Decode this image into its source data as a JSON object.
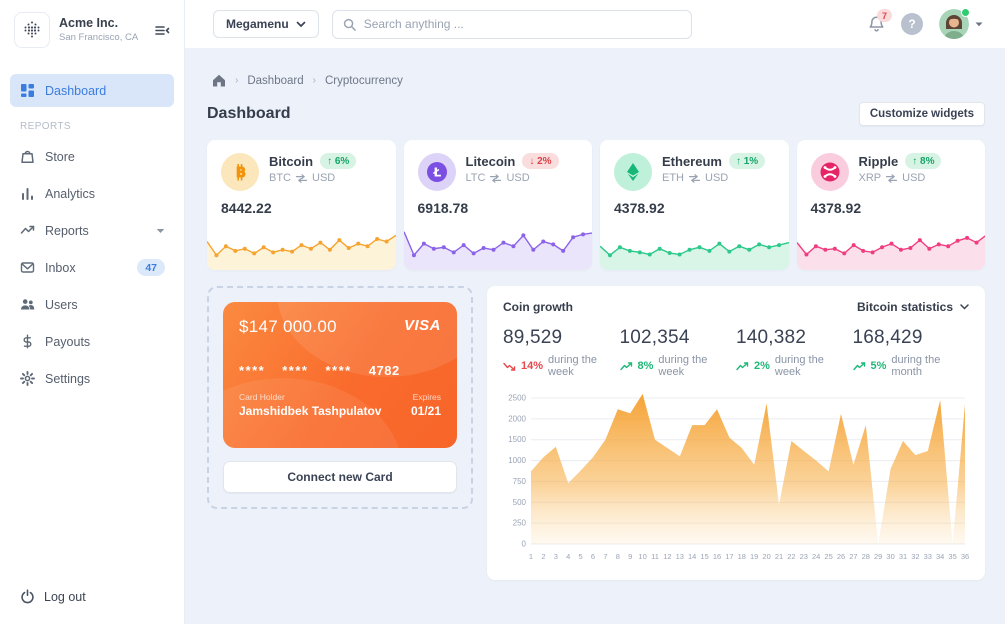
{
  "brand": {
    "name": "Acme Inc.",
    "location": "San Francisco, CA"
  },
  "sidebar": {
    "section_header": "REPORTS",
    "items": [
      {
        "label": "Dashboard"
      },
      {
        "label": "Store"
      },
      {
        "label": "Analytics"
      },
      {
        "label": "Reports"
      },
      {
        "label": "Inbox",
        "badge": "47"
      },
      {
        "label": "Users"
      },
      {
        "label": "Payouts"
      },
      {
        "label": "Settings"
      }
    ],
    "logout_label": "Log out"
  },
  "topbar": {
    "megamenu_label": "Megamenu",
    "search_placeholder": "Search anything ...",
    "notification_count": "7",
    "help_label": "?"
  },
  "breadcrumb": {
    "items": [
      "Dashboard",
      "Cryptocurrency"
    ]
  },
  "page": {
    "title": "Dashboard",
    "customize_button": "Customize widgets"
  },
  "crypto_cards": [
    {
      "name": "Bitcoin",
      "symbol": "BTC",
      "quote": "USD",
      "change": "6%",
      "direction": "up",
      "price": "8442.22",
      "line_color": "#f6a431",
      "fill_color": "#fcf3d9",
      "icon_bg": "#fbe7bb",
      "icon_color": "#f2930d",
      "spark": [
        68,
        30,
        55,
        42,
        48,
        35,
        52,
        38,
        45,
        40,
        58,
        48,
        65,
        45,
        72,
        50,
        62,
        55,
        75,
        68,
        85
      ]
    },
    {
      "name": "Litecoin",
      "symbol": "LTC",
      "quote": "USD",
      "change": "2%",
      "direction": "down",
      "price": "6918.78",
      "line_color": "#8b63e8",
      "fill_color": "#ebe5fb",
      "icon_bg": "#ddd3f8",
      "icon_color": "#7c4fe3",
      "spark": [
        95,
        30,
        62,
        48,
        52,
        38,
        58,
        35,
        50,
        45,
        65,
        55,
        85,
        45,
        68,
        60,
        42,
        80,
        88,
        92
      ]
    },
    {
      "name": "Ethereum",
      "symbol": "ETH",
      "quote": "USD",
      "change": "1%",
      "direction": "up",
      "price": "4378.92",
      "line_color": "#2dc98b",
      "fill_color": "#d9f5e8",
      "icon_bg": "#bff0d9",
      "icon_color": "#17b877",
      "spark": [
        55,
        30,
        52,
        42,
        38,
        32,
        48,
        36,
        32,
        45,
        52,
        42,
        62,
        40,
        55,
        45,
        60,
        52,
        58,
        65
      ]
    },
    {
      "name": "Ripple",
      "symbol": "XRP",
      "quote": "USD",
      "change": "8%",
      "direction": "up",
      "price": "4378.92",
      "line_color": "#ee3e80",
      "fill_color": "#fbdfeb",
      "icon_bg": "#f9cddd",
      "icon_color": "#e62566",
      "spark": [
        65,
        32,
        55,
        45,
        48,
        35,
        58,
        42,
        38,
        52,
        62,
        45,
        50,
        72,
        48,
        60,
        55,
        70,
        78,
        65,
        85
      ]
    }
  ],
  "card_widget": {
    "balance": "$147 000.00",
    "brand": "VISA",
    "number_groups": [
      "****",
      "****",
      "****",
      "4782"
    ],
    "holder_label": "Card Holder",
    "holder_name": "Jamshidbek Tashpulatov",
    "expires_label": "Expires",
    "expires_value": "01/21",
    "connect_button": "Connect new Card"
  },
  "coin_growth": {
    "title": "Coin growth",
    "dropdown_label": "Bitcoin statistics",
    "stats": [
      {
        "value": "89,529",
        "percent": "14%",
        "suffix": "during the week",
        "trend": "down"
      },
      {
        "value": "102,354",
        "percent": "8%",
        "suffix": "during the week",
        "trend": "up"
      },
      {
        "value": "140,382",
        "percent": "2%",
        "suffix": "during the week",
        "trend": "up"
      },
      {
        "value": "168,429",
        "percent": "5%",
        "suffix": "during the month",
        "trend": "up"
      }
    ]
  },
  "chart_data": {
    "type": "area",
    "title": "Coin growth",
    "x": [
      1,
      2,
      3,
      4,
      5,
      6,
      7,
      8,
      9,
      10,
      11,
      12,
      13,
      14,
      15,
      16,
      17,
      18,
      19,
      20,
      21,
      22,
      23,
      24,
      25,
      26,
      27,
      28,
      29,
      30,
      31,
      32,
      33,
      34,
      35,
      36
    ],
    "values": [
      870,
      1080,
      1330,
      730,
      880,
      1080,
      1500,
      2230,
      2130,
      2600,
      1500,
      1300,
      1100,
      1850,
      1850,
      2230,
      1550,
      1300,
      950,
      2370,
      470,
      1470,
      1230,
      1000,
      870,
      2120,
      950,
      1850,
      0,
      900,
      1470,
      1130,
      1230,
      2450,
      0,
      2350
    ],
    "y_ticks": [
      0,
      250,
      500,
      750,
      1000,
      1500,
      2000,
      2500
    ],
    "xlabel": "",
    "ylabel": "",
    "grid": true,
    "legend": false,
    "area_color": "#f5a030"
  },
  "colors": {
    "accent_blue": "#3b7ddd",
    "success": "#1eb877",
    "danger": "#e5484d",
    "card_orange": "#f96b2c"
  }
}
